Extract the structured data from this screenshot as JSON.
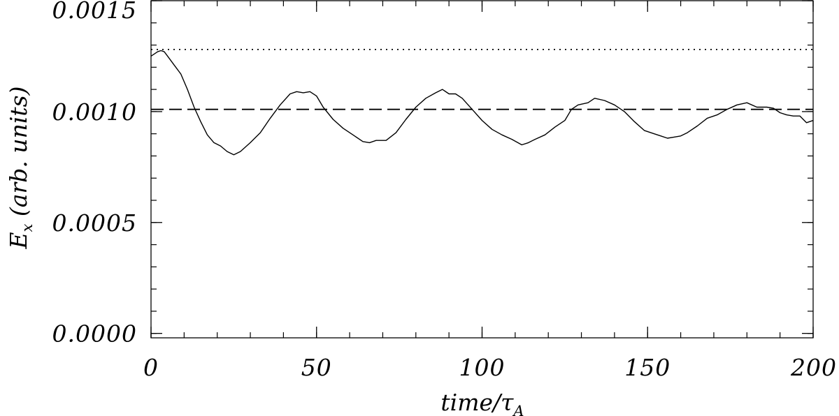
{
  "chart_data": {
    "type": "line",
    "xlabel_main": "time/",
    "xlabel_greek": "τ",
    "xlabel_sub": "A",
    "ylabel_main": "E",
    "ylabel_sub": "x",
    "ylabel_rest": " (arb. units)",
    "xlim": [
      0,
      200
    ],
    "ylim": [
      -2e-05,
      0.0015
    ],
    "x_ticks": [
      0,
      50,
      100,
      150,
      200
    ],
    "x_tick_labels": [
      "0",
      "50",
      "100",
      "150",
      "200"
    ],
    "y_ticks": [
      0.0,
      0.0005,
      0.001,
      0.0015
    ],
    "y_tick_labels": [
      "0.0000",
      "0.0005",
      "0.0010",
      "0.0015"
    ],
    "x_minor_step": 10,
    "y_minor_step": 0.0001,
    "grid": false,
    "reference_lines": [
      {
        "style": "dotted",
        "y": 0.00128
      },
      {
        "style": "dashed",
        "y": 0.00101
      }
    ],
    "series": [
      {
        "style": "solid",
        "x": [
          0,
          1,
          2,
          3,
          4,
          5,
          7,
          9,
          11,
          13,
          15,
          17,
          19,
          21,
          23,
          25,
          27,
          30,
          33,
          36,
          39,
          42,
          44,
          46,
          48,
          50,
          52,
          55,
          58,
          61,
          64,
          66,
          68,
          71,
          74,
          77,
          80,
          83,
          86,
          88,
          90,
          92,
          94,
          97,
          100,
          103,
          106,
          109,
          112,
          114,
          116,
          119,
          122,
          125,
          127,
          129,
          132,
          134,
          137,
          140,
          143,
          146,
          149,
          152,
          154,
          156,
          158,
          160,
          162,
          165,
          168,
          171,
          174,
          177,
          180,
          183,
          186,
          188,
          190,
          192,
          194,
          196,
          198,
          200
        ],
        "y": [
          0.00125,
          0.00126,
          0.00127,
          0.001275,
          0.00127,
          0.00125,
          0.00121,
          0.00117,
          0.0011,
          0.00102,
          0.000955,
          0.000895,
          0.00086,
          0.000845,
          0.00082,
          0.000805,
          0.00082,
          0.00086,
          0.000905,
          0.00097,
          0.00103,
          0.00108,
          0.00109,
          0.001085,
          0.00109,
          0.00107,
          0.00102,
          0.000965,
          0.000925,
          0.000895,
          0.000865,
          0.00086,
          0.00087,
          0.00087,
          0.000905,
          0.000965,
          0.00102,
          0.00106,
          0.001085,
          0.0011,
          0.00108,
          0.00108,
          0.00106,
          0.00101,
          0.00096,
          0.00092,
          0.000895,
          0.000875,
          0.00085,
          0.00086,
          0.000875,
          0.000895,
          0.00093,
          0.00096,
          0.00101,
          0.00103,
          0.00104,
          0.00106,
          0.00105,
          0.00103,
          0.001,
          0.000955,
          0.000915,
          0.0009,
          0.00089,
          0.00088,
          0.000885,
          0.00089,
          0.000905,
          0.000935,
          0.00097,
          0.000985,
          0.00101,
          0.00103,
          0.00104,
          0.00102,
          0.00102,
          0.001015,
          0.000995,
          0.000985,
          0.00098,
          0.00098,
          0.00095,
          0.00096
        ]
      }
    ]
  }
}
